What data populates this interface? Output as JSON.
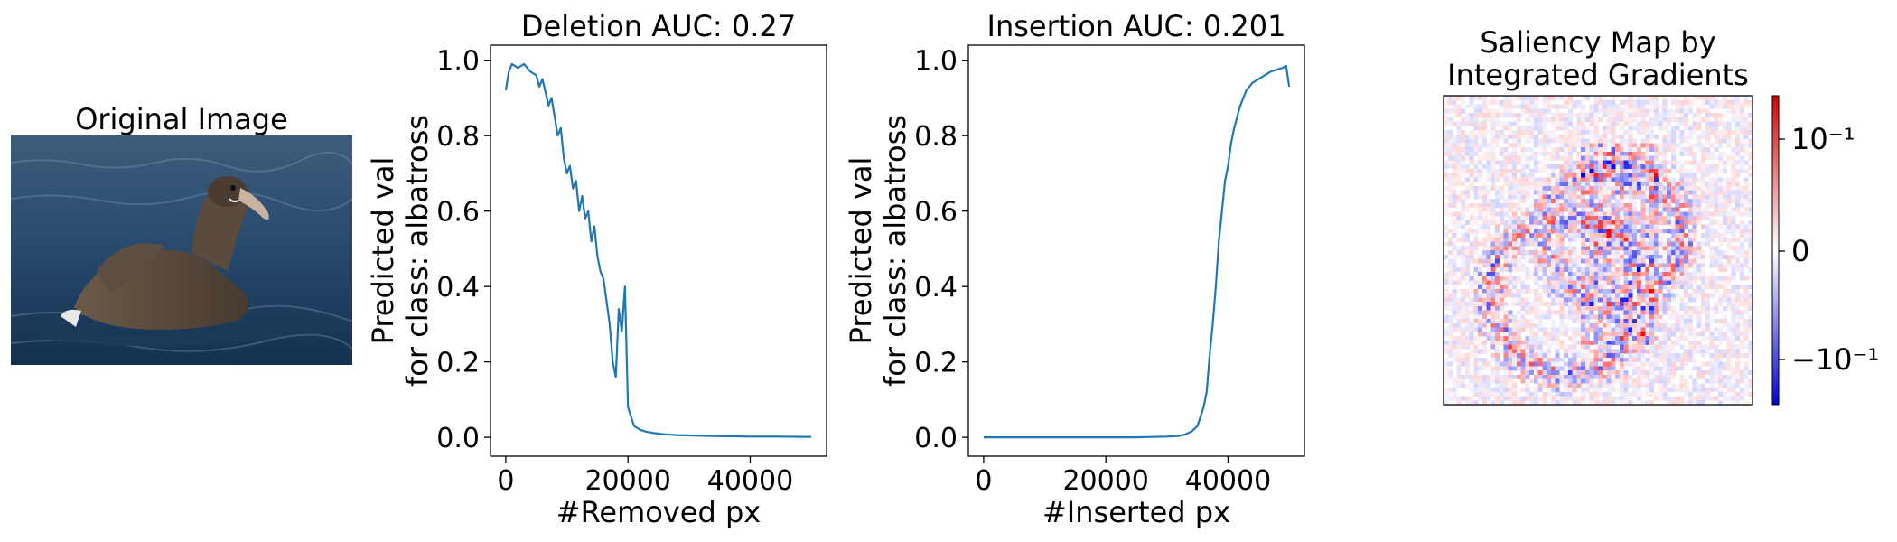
{
  "image_panel": {
    "title": "Original Image",
    "subject_icon": "albatross-photo"
  },
  "chart_data": [
    {
      "type": "line",
      "title": "Deletion AUC: 0.27",
      "xlabel": "#Removed px",
      "ylabel": [
        "Predicted val",
        "for class: albatross"
      ],
      "xlim": [
        -2500,
        52500
      ],
      "ylim": [
        -0.05,
        1.04
      ],
      "xticks": [
        0,
        20000,
        40000
      ],
      "yticks": [
        0.0,
        0.2,
        0.4,
        0.6,
        0.8,
        1.0
      ],
      "grid": false,
      "series": [
        {
          "color": "#1f77b4",
          "x": [
            0,
            500,
            1000,
            2000,
            3000,
            4000,
            5000,
            5500,
            6000,
            7000,
            7500,
            8000,
            8500,
            9000,
            9500,
            10000,
            10500,
            11000,
            11500,
            12000,
            12500,
            13000,
            13500,
            14000,
            14500,
            15000,
            15500,
            16000,
            16500,
            17000,
            17500,
            18000,
            18500,
            19000,
            19500,
            20000,
            21000,
            22000,
            23000,
            24000,
            25000,
            26000,
            28000,
            30000,
            33000,
            36000,
            40000,
            45000,
            50000
          ],
          "y": [
            0.92,
            0.97,
            0.99,
            0.98,
            0.99,
            0.97,
            0.96,
            0.93,
            0.95,
            0.88,
            0.9,
            0.85,
            0.8,
            0.82,
            0.74,
            0.7,
            0.72,
            0.66,
            0.68,
            0.6,
            0.64,
            0.58,
            0.6,
            0.52,
            0.56,
            0.48,
            0.44,
            0.42,
            0.36,
            0.3,
            0.2,
            0.16,
            0.34,
            0.28,
            0.4,
            0.08,
            0.03,
            0.02,
            0.015,
            0.012,
            0.01,
            0.008,
            0.006,
            0.005,
            0.004,
            0.003,
            0.002,
            0.002,
            0.001
          ]
        }
      ]
    },
    {
      "type": "line",
      "title": "Insertion AUC: 0.201",
      "xlabel": "#Inserted px",
      "ylabel": [
        "Predicted val",
        "for class: albatross"
      ],
      "xlim": [
        -2500,
        52500
      ],
      "ylim": [
        -0.05,
        1.04
      ],
      "xticks": [
        0,
        20000,
        40000
      ],
      "yticks": [
        0.0,
        0.2,
        0.4,
        0.6,
        0.8,
        1.0
      ],
      "grid": false,
      "series": [
        {
          "color": "#1f77b4",
          "x": [
            0,
            5000,
            10000,
            15000,
            20000,
            25000,
            30000,
            32000,
            33000,
            34000,
            35000,
            36000,
            36500,
            37000,
            37500,
            38000,
            38500,
            39000,
            39500,
            40000,
            40500,
            41000,
            42000,
            43000,
            44000,
            45000,
            46000,
            47000,
            48000,
            49000,
            49500,
            50000
          ],
          "y": [
            0.0,
            0.0,
            0.0,
            0.0,
            0.0,
            0.0,
            0.002,
            0.004,
            0.008,
            0.015,
            0.03,
            0.08,
            0.12,
            0.22,
            0.3,
            0.4,
            0.52,
            0.6,
            0.68,
            0.72,
            0.78,
            0.82,
            0.88,
            0.92,
            0.94,
            0.95,
            0.96,
            0.97,
            0.975,
            0.98,
            0.985,
            0.93
          ]
        }
      ]
    },
    {
      "type": "heatmap",
      "title": [
        "Saliency Map by",
        "Integrated Gradients"
      ],
      "colormap": "bwr",
      "colorbar_ticks": [
        "10⁻¹",
        "0",
        "−10⁻¹"
      ],
      "colorbar_scale": "symlog",
      "color_pos": "#dd0000",
      "color_neg": "#0000dd",
      "axes_ticks": false
    }
  ]
}
